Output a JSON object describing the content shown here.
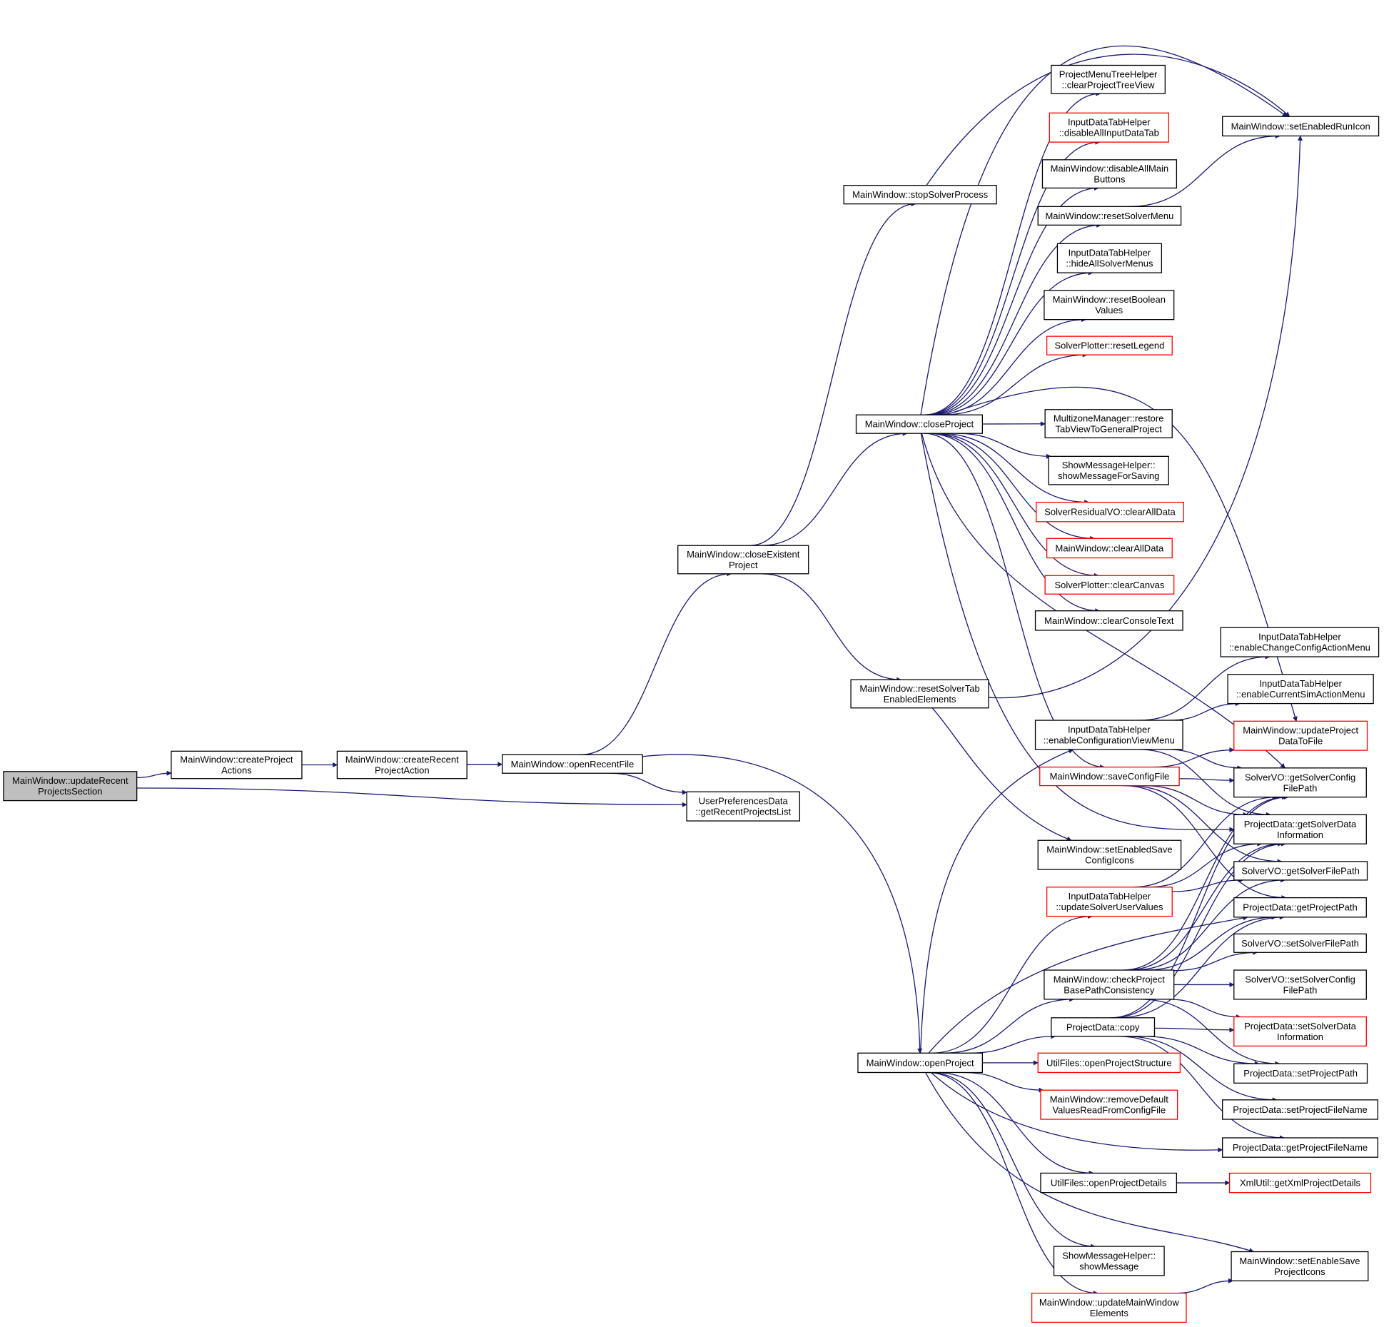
{
  "colors": {
    "edge": "#191970",
    "node_border": "#000000",
    "truncated_border": "#ff0000",
    "root_fill": "#bfbfbf"
  },
  "nodes": [
    {
      "id": "updateRecent",
      "lines": [
        "MainWindow::updateRecent",
        "ProjectsSection"
      ],
      "root": true
    },
    {
      "id": "createProjectActions",
      "lines": [
        "MainWindow::createProject",
        "Actions"
      ]
    },
    {
      "id": "createRecentProjectAction",
      "lines": [
        "MainWindow::createRecent",
        "ProjectAction"
      ]
    },
    {
      "id": "openRecentFile",
      "lines": [
        "MainWindow::openRecentFile"
      ]
    },
    {
      "id": "getRecentProjectsList",
      "lines": [
        "UserPreferencesData",
        "::getRecentProjectsList"
      ]
    },
    {
      "id": "closeExistentProject",
      "lines": [
        "MainWindow::closeExistent",
        "Project"
      ]
    },
    {
      "id": "stopSolverProcess",
      "lines": [
        "MainWindow::stopSolverProcess"
      ]
    },
    {
      "id": "closeProject",
      "lines": [
        "MainWindow::closeProject"
      ]
    },
    {
      "id": "resetSolverTabEnabledElements",
      "lines": [
        "MainWindow::resetSolverTab",
        "EnabledElements"
      ]
    },
    {
      "id": "openProject",
      "lines": [
        "MainWindow::openProject"
      ]
    },
    {
      "id": "clearProjectTreeView",
      "lines": [
        "ProjectMenuTreeHelper",
        "::clearProjectTreeView"
      ]
    },
    {
      "id": "disableAllInputDataTab",
      "lines": [
        "InputDataTabHelper",
        "::disableAllInputDataTab"
      ],
      "red": true
    },
    {
      "id": "disableAllMainButtons",
      "lines": [
        "MainWindow::disableAllMain",
        "Buttons"
      ]
    },
    {
      "id": "resetSolverMenu",
      "lines": [
        "MainWindow::resetSolverMenu"
      ]
    },
    {
      "id": "hideAllSolverMenus",
      "lines": [
        "InputDataTabHelper",
        "::hideAllSolverMenus"
      ]
    },
    {
      "id": "resetBooleanValues",
      "lines": [
        "MainWindow::resetBoolean",
        "Values"
      ]
    },
    {
      "id": "resetLegend",
      "lines": [
        "SolverPlotter::resetLegend"
      ],
      "red": true
    },
    {
      "id": "restoreTabView",
      "lines": [
        "MultizoneManager::restore",
        "TabViewToGeneralProject"
      ]
    },
    {
      "id": "showMessageForSaving",
      "lines": [
        "ShowMessageHelper::",
        "showMessageForSaving"
      ]
    },
    {
      "id": "solverResidualClearAllData",
      "lines": [
        "SolverResidualVO::clearAllData"
      ],
      "red": true
    },
    {
      "id": "mainClearAllData",
      "lines": [
        "MainWindow::clearAllData"
      ],
      "red": true
    },
    {
      "id": "clearCanvas",
      "lines": [
        "SolverPlotter::clearCanvas"
      ],
      "red": true
    },
    {
      "id": "clearConsoleText",
      "lines": [
        "MainWindow::clearConsoleText"
      ]
    },
    {
      "id": "enableConfigurationViewMenu",
      "lines": [
        "InputDataTabHelper",
        "::enableConfigurationViewMenu"
      ]
    },
    {
      "id": "saveConfigFile",
      "lines": [
        "MainWindow::saveConfigFile"
      ],
      "red": true
    },
    {
      "id": "setEnabledSaveConfigIcons",
      "lines": [
        "MainWindow::setEnabledSave",
        "ConfigIcons"
      ]
    },
    {
      "id": "updateSolverUserValues",
      "lines": [
        "InputDataTabHelper",
        "::updateSolverUserValues"
      ],
      "red": true
    },
    {
      "id": "checkProjectBasePath",
      "lines": [
        "MainWindow::checkProject",
        "BasePathConsistency"
      ]
    },
    {
      "id": "projectDataCopy",
      "lines": [
        "ProjectData::copy"
      ]
    },
    {
      "id": "openProjectStructure",
      "lines": [
        "UtilFiles::openProjectStructure"
      ],
      "red": true
    },
    {
      "id": "removeDefaultValues",
      "lines": [
        "MainWindow::removeDefault",
        "ValuesReadFromConfigFile"
      ],
      "red": true
    },
    {
      "id": "openProjectDetails",
      "lines": [
        "UtilFiles::openProjectDetails"
      ]
    },
    {
      "id": "showMessage",
      "lines": [
        "ShowMessageHelper::",
        "showMessage"
      ]
    },
    {
      "id": "updateMainWindowElements",
      "lines": [
        "MainWindow::updateMainWindow",
        "Elements"
      ],
      "red": true
    },
    {
      "id": "setEnabledRunIcon",
      "lines": [
        "MainWindow::setEnabledRunIcon"
      ]
    },
    {
      "id": "enableChangeConfigActionMenu",
      "lines": [
        "InputDataTabHelper",
        "::enableChangeConfigActionMenu"
      ]
    },
    {
      "id": "enableCurrentSimActionMenu",
      "lines": [
        "InputDataTabHelper",
        "::enableCurrentSimActionMenu"
      ]
    },
    {
      "id": "updateProjectDataToFile",
      "lines": [
        "MainWindow::updateProject",
        "DataToFile"
      ],
      "red": true
    },
    {
      "id": "getSolverConfigFilePath",
      "lines": [
        "SolverVO::getSolverConfig",
        "FilePath"
      ]
    },
    {
      "id": "getSolverDataInformation",
      "lines": [
        "ProjectData::getSolverData",
        "Information"
      ]
    },
    {
      "id": "getSolverFilePath",
      "lines": [
        "SolverVO::getSolverFilePath"
      ]
    },
    {
      "id": "getProjectPath",
      "lines": [
        "ProjectData::getProjectPath"
      ]
    },
    {
      "id": "setSolverFilePath",
      "lines": [
        "SolverVO::setSolverFilePath"
      ]
    },
    {
      "id": "setSolverConfigFilePath",
      "lines": [
        "SolverVO::setSolverConfig",
        "FilePath"
      ]
    },
    {
      "id": "setSolverDataInformation",
      "lines": [
        "ProjectData::setSolverData",
        "Information"
      ],
      "red": true
    },
    {
      "id": "setProjectPath",
      "lines": [
        "ProjectData::setProjectPath"
      ]
    },
    {
      "id": "setProjectFileName",
      "lines": [
        "ProjectData::setProjectFileName"
      ]
    },
    {
      "id": "getProjectFileName",
      "lines": [
        "ProjectData::getProjectFileName"
      ]
    },
    {
      "id": "getXmlProjectDetails",
      "lines": [
        "XmlUtil::getXmlProjectDetails"
      ],
      "red": true
    },
    {
      "id": "setEnableSaveProjectIcons",
      "lines": [
        "MainWindow::setEnableSave",
        "ProjectIcons"
      ]
    }
  ]
}
